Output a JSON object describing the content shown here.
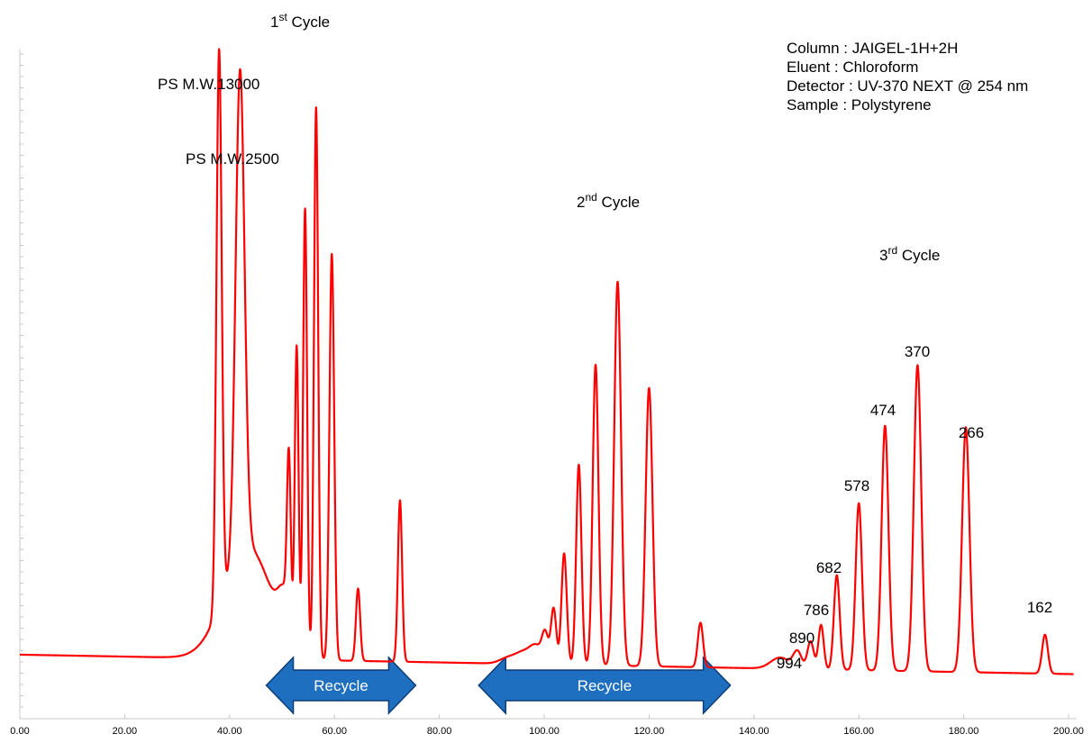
{
  "chart_data": {
    "type": "line",
    "xlim": [
      0,
      200
    ],
    "x_ticks": [
      "0.00",
      "20.00",
      "40.00",
      "60.00",
      "80.00",
      "100.00",
      "120.00",
      "140.00",
      "160.00",
      "180.00",
      "200.00"
    ],
    "line_color": "#ff0000",
    "baseline": {
      "start": 0.005,
      "end": -0.03
    },
    "peaks": [
      {
        "x": 38.0,
        "h": 1.0,
        "w": 0.5
      },
      {
        "x": 42.0,
        "h": 0.87,
        "w": 0.85
      },
      {
        "x": 43.5,
        "h": 0.2,
        "w": 4.5
      },
      {
        "x": 50.5,
        "h": 0.07,
        "w": 1.2
      },
      {
        "x": 51.3,
        "h": 0.28,
        "w": 0.35
      },
      {
        "x": 52.8,
        "h": 0.53,
        "w": 0.35
      },
      {
        "x": 54.4,
        "h": 0.8,
        "w": 0.38
      },
      {
        "x": 56.5,
        "h": 0.99,
        "w": 0.4
      },
      {
        "x": 59.5,
        "h": 0.73,
        "w": 0.45
      },
      {
        "x": 64.5,
        "h": 0.13,
        "w": 0.4
      },
      {
        "x": 72.5,
        "h": 0.29,
        "w": 0.4
      },
      {
        "x": 93.0,
        "h": 0.01,
        "w": 1.5
      },
      {
        "x": 96.0,
        "h": 0.02,
        "w": 1.5
      },
      {
        "x": 98.5,
        "h": 0.03,
        "w": 1.2
      },
      {
        "x": 100.2,
        "h": 0.05,
        "w": 0.6
      },
      {
        "x": 101.8,
        "h": 0.1,
        "w": 0.5
      },
      {
        "x": 103.8,
        "h": 0.2,
        "w": 0.5
      },
      {
        "x": 106.6,
        "h": 0.36,
        "w": 0.5
      },
      {
        "x": 109.8,
        "h": 0.54,
        "w": 0.55
      },
      {
        "x": 114.0,
        "h": 0.69,
        "w": 0.65
      },
      {
        "x": 120.0,
        "h": 0.5,
        "w": 0.65
      },
      {
        "x": 129.8,
        "h": 0.08,
        "w": 0.5
      },
      {
        "x": 145.0,
        "h": 0.02,
        "w": 1.8
      },
      {
        "x": 148.3,
        "h": 0.03,
        "w": 0.8
      },
      {
        "x": 150.8,
        "h": 0.05,
        "w": 0.6
      },
      {
        "x": 152.8,
        "h": 0.08,
        "w": 0.5
      },
      {
        "x": 155.8,
        "h": 0.17,
        "w": 0.55
      },
      {
        "x": 160.0,
        "h": 0.3,
        "w": 0.6
      },
      {
        "x": 165.0,
        "h": 0.44,
        "w": 0.65
      },
      {
        "x": 171.2,
        "h": 0.55,
        "w": 0.7
      },
      {
        "x": 180.4,
        "h": 0.44,
        "w": 0.7
      },
      {
        "x": 195.5,
        "h": 0.07,
        "w": 0.55
      }
    ],
    "annotations": [
      {
        "id": "cycle1",
        "text": "1",
        "sup": "st",
        "after": " Cycle"
      },
      {
        "id": "cycle2",
        "text": "2",
        "sup": "nd",
        "after": " Cycle"
      },
      {
        "id": "cycle3",
        "text": "3",
        "sup": "rd",
        "after": " Cycle"
      },
      {
        "id": "ps13000",
        "text": "PS M.W.13000"
      },
      {
        "id": "ps2500",
        "text": "PS M.W.2500"
      },
      {
        "id": "p370",
        "text": "370"
      },
      {
        "id": "p474",
        "text": "474"
      },
      {
        "id": "p266",
        "text": "266"
      },
      {
        "id": "p578",
        "text": "578"
      },
      {
        "id": "p682",
        "text": "682"
      },
      {
        "id": "p786",
        "text": "786"
      },
      {
        "id": "p890",
        "text": "890"
      },
      {
        "id": "p994",
        "text": "994"
      },
      {
        "id": "p162",
        "text": "162"
      }
    ],
    "recycle_arrows": [
      {
        "label": "Recycle",
        "x_start": 47.0,
        "x_end": 75.5,
        "color": "#1f6fc0"
      },
      {
        "label": "Recycle",
        "x_start": 87.5,
        "x_end": 135.5,
        "color": "#1f6fc0"
      }
    ]
  },
  "info": {
    "column": "Column : JAIGEL-1H+2H",
    "eluent": "Eluent : Chloroform",
    "detector": "Detector : UV-370 NEXT @ 254 nm",
    "sample": "Sample : Polystyrene"
  }
}
